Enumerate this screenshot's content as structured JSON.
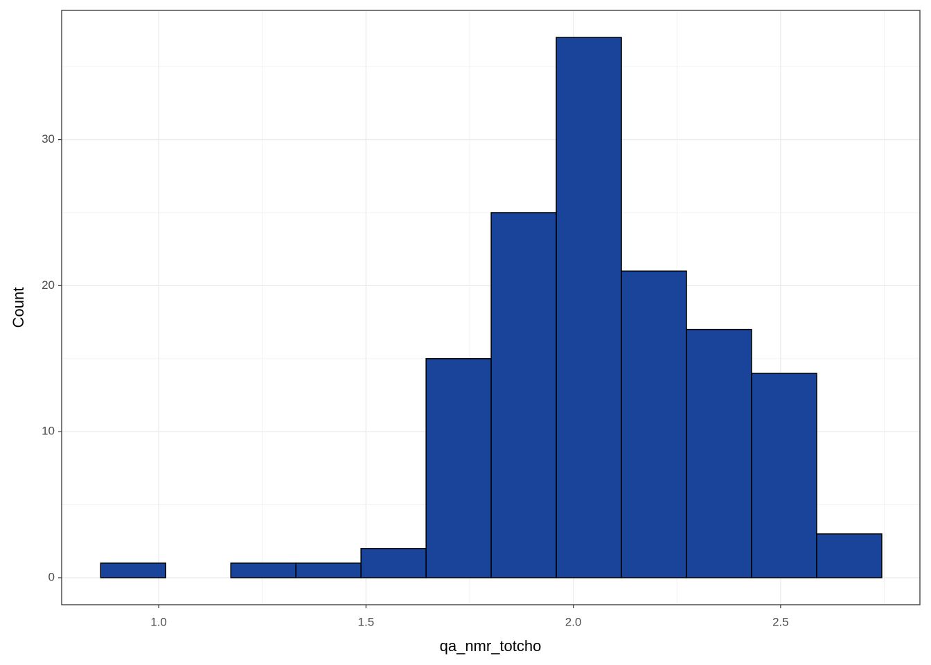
{
  "chart_data": {
    "type": "histogram",
    "x_label": "qa_nmr_totcho",
    "y_label": "Count",
    "bins": [
      0.86,
      1.017,
      1.174,
      1.331,
      1.488,
      1.645,
      1.802,
      1.959,
      2.116,
      2.273,
      2.43,
      2.587,
      2.744
    ],
    "counts": [
      1,
      0,
      1,
      1,
      2,
      15,
      25,
      37,
      21,
      17,
      14,
      3
    ],
    "color": "#19449a",
    "edgecolor": "#000000",
    "xlim": [
      0.766,
      2.836
    ],
    "ylim": [
      -1.85,
      38.85
    ],
    "xticks": [
      {
        "value": 1.0,
        "label": "1.0"
      },
      {
        "value": 1.5,
        "label": "1.5"
      },
      {
        "value": 2.0,
        "label": "2.0"
      },
      {
        "value": 2.5,
        "label": "2.5"
      }
    ],
    "yticks": [
      0,
      10,
      20,
      30
    ],
    "grid": true
  }
}
